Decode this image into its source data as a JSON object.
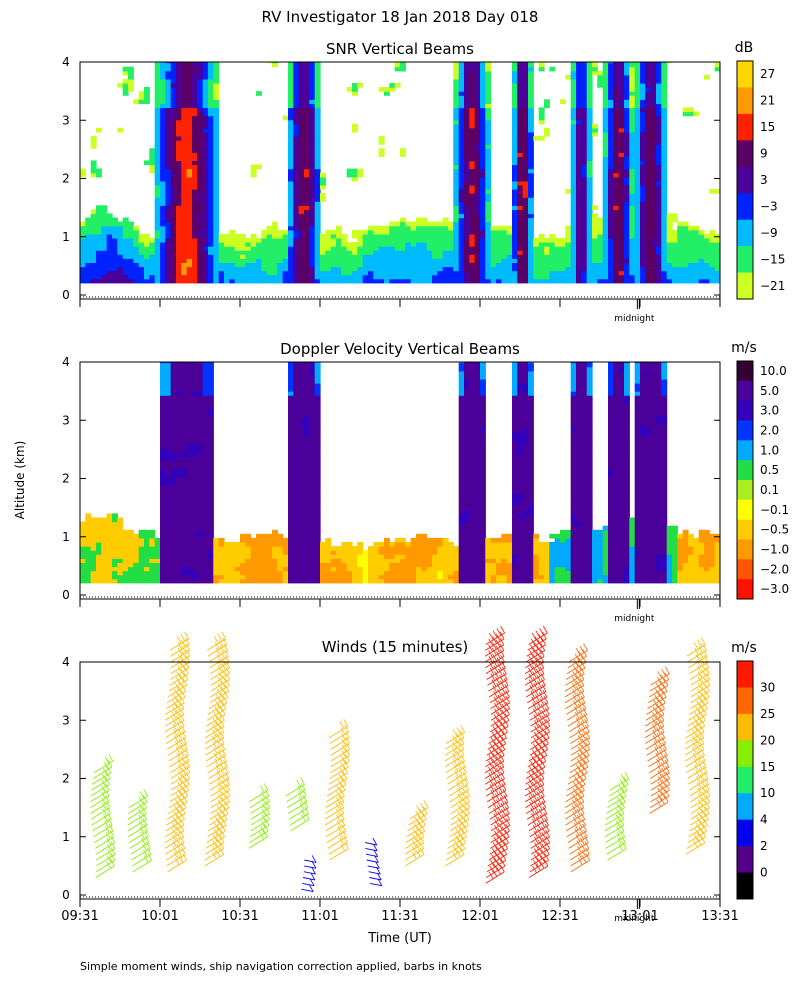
{
  "page": {
    "main_title": "RV Investigator  18 Jan 2018 Day 018",
    "y_axis_label": "Altitude (km)",
    "x_axis_label": "Time (UT)",
    "footnote": "Simple moment winds, ship navigation correction applied, barbs in knots",
    "midnight_label": "midnight"
  },
  "chart_data": [
    {
      "type": "heatmap",
      "title": "SNR Vertical Beams",
      "ylabel": "Altitude (km)",
      "ylim": [
        0,
        4
      ],
      "y_ticks": [
        "0",
        "1",
        "2",
        "3",
        "4"
      ],
      "x_start": "09:31",
      "x_end": "13:31",
      "colorbar": {
        "unit": "dB",
        "labels": [
          "27",
          "21",
          "15",
          "9",
          "3",
          "−3",
          "−9",
          "−15",
          "−21"
        ],
        "colors": [
          "#ffd700",
          "#ff9900",
          "#ff2200",
          "#5a0066",
          "#4b0099",
          "#0022ff",
          "#00bbff",
          "#22ee66",
          "#ccff22"
        ]
      },
      "features": {
        "note": "high SNR columns near 10:07-10:20 and 12:01-12:12, low-level layer below 1.2 km throughout"
      }
    },
    {
      "type": "heatmap",
      "title": "Doppler Velocity Vertical Beams",
      "ylabel": "Altitude (km)",
      "ylim": [
        0,
        4
      ],
      "y_ticks": [
        "0",
        "1",
        "2",
        "3",
        "4"
      ],
      "x_start": "09:31",
      "x_end": "13:31",
      "colorbar": {
        "unit": "m/s",
        "labels": [
          "10.0",
          "5.0",
          "3.0",
          "2.0",
          "1.0",
          "0.5",
          "0.1",
          "−0.1",
          "−0.5",
          "−1.0",
          "−2.0",
          "−3.0"
        ],
        "colors": [
          "#330033",
          "#4b0099",
          "#3300bb",
          "#0033ff",
          "#00aaff",
          "#22dd44",
          "#aaee22",
          "#ffff00",
          "#ffcc00",
          "#ff9900",
          "#ff5500",
          "#ff1100"
        ]
      }
    },
    {
      "type": "scatter",
      "title": "Winds (15 minutes)",
      "ylabel": "Altitude (km)",
      "xlabel": "Time (UT)",
      "ylim": [
        0,
        4
      ],
      "y_ticks": [
        "0",
        "1",
        "2",
        "3",
        "4"
      ],
      "x_tick_labels": [
        "09:31",
        "10:01",
        "10:31",
        "11:01",
        "11:31",
        "12:01",
        "12:31",
        "13:01",
        "13:31"
      ],
      "colorbar": {
        "unit": "m/s",
        "labels": [
          "30",
          "25",
          "20",
          "15",
          "10",
          "4",
          "2",
          "0"
        ],
        "colors": [
          "#ff1a00",
          "#ff6600",
          "#ffbb00",
          "#88ee00",
          "#22ee66",
          "#00aaff",
          "#0000ee",
          "#550088",
          "#000000"
        ]
      },
      "series": [
        {
          "time": "09:36",
          "min_km": 0.3,
          "max_km": 2.1,
          "speed_ms": 16
        },
        {
          "time": "09:50",
          "min_km": 0.4,
          "max_km": 1.5,
          "speed_ms": 17
        },
        {
          "time": "10:04",
          "min_km": 0.4,
          "max_km": 4.2,
          "speed_ms": 21
        },
        {
          "time": "10:19",
          "min_km": 0.5,
          "max_km": 4.2,
          "speed_ms": 20
        },
        {
          "time": "10:34",
          "min_km": 0.8,
          "max_km": 1.6,
          "speed_ms": 16
        },
        {
          "time": "10:49",
          "min_km": 1.1,
          "max_km": 1.7,
          "speed_ms": 15
        },
        {
          "time": "10:54",
          "min_km": 0.1,
          "max_km": 0.6,
          "speed_ms": 3
        },
        {
          "time": "11:04",
          "min_km": 0.6,
          "max_km": 2.7,
          "speed_ms": 19
        },
        {
          "time": "11:19",
          "min_km": 0.2,
          "max_km": 0.9,
          "speed_ms": 4
        },
        {
          "time": "11:34",
          "min_km": 0.5,
          "max_km": 1.3,
          "speed_ms": 21
        },
        {
          "time": "11:49",
          "min_km": 0.5,
          "max_km": 2.6,
          "speed_ms": 22
        },
        {
          "time": "12:04",
          "min_km": 0.2,
          "max_km": 4.3,
          "speed_ms": 28
        },
        {
          "time": "12:19",
          "min_km": 0.3,
          "max_km": 4.3,
          "speed_ms": 29
        },
        {
          "time": "12:34",
          "min_km": 0.4,
          "max_km": 4.0,
          "speed_ms": 26
        },
        {
          "time": "12:49",
          "min_km": 0.6,
          "max_km": 1.8,
          "speed_ms": 17
        },
        {
          "time": "13:04",
          "min_km": 1.4,
          "max_km": 3.6,
          "speed_ms": 23
        },
        {
          "time": "13:19",
          "min_km": 0.7,
          "max_km": 4.1,
          "speed_ms": 20
        }
      ]
    }
  ]
}
